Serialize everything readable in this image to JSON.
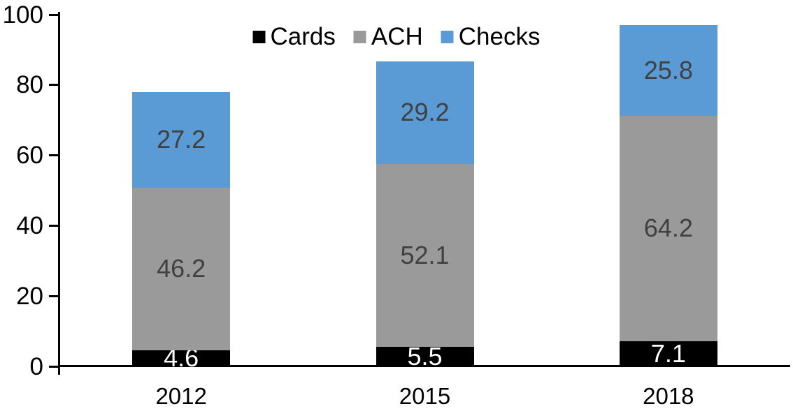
{
  "figure": {
    "background": "#FFFFFF",
    "axis_color": "#000000",
    "label_dark_color": "#404040",
    "label_light_color": "#FFFFFF"
  },
  "legend": {
    "position": "top",
    "items": [
      {
        "label": "Cards",
        "color": "#000000"
      },
      {
        "label": "ACH",
        "color": "#9A9A9A"
      },
      {
        "label": "Checks",
        "color": "#5B9BD5"
      }
    ]
  },
  "chart_data": {
    "type": "bar",
    "stacked": true,
    "title": "",
    "xlabel": "",
    "ylabel": "",
    "categories": [
      "2012",
      "2015",
      "2018"
    ],
    "series": [
      {
        "name": "Cards",
        "color": "#000000",
        "label_color": "#FFFFFF",
        "values": [
          4.6,
          5.5,
          7.1
        ]
      },
      {
        "name": "ACH",
        "color": "#9A9A9A",
        "label_color": "#404040",
        "values": [
          46.2,
          52.1,
          64.2
        ]
      },
      {
        "name": "Checks",
        "color": "#5B9BD5",
        "label_color": "#404040",
        "values": [
          27.2,
          29.2,
          25.8
        ]
      }
    ],
    "totals": [
      78.0,
      86.8,
      97.1
    ],
    "yticks": [
      0,
      20,
      40,
      60,
      80,
      100
    ],
    "ylim": [
      0,
      100
    ],
    "grid": false,
    "data_labels": true,
    "legend_position": "top"
  }
}
